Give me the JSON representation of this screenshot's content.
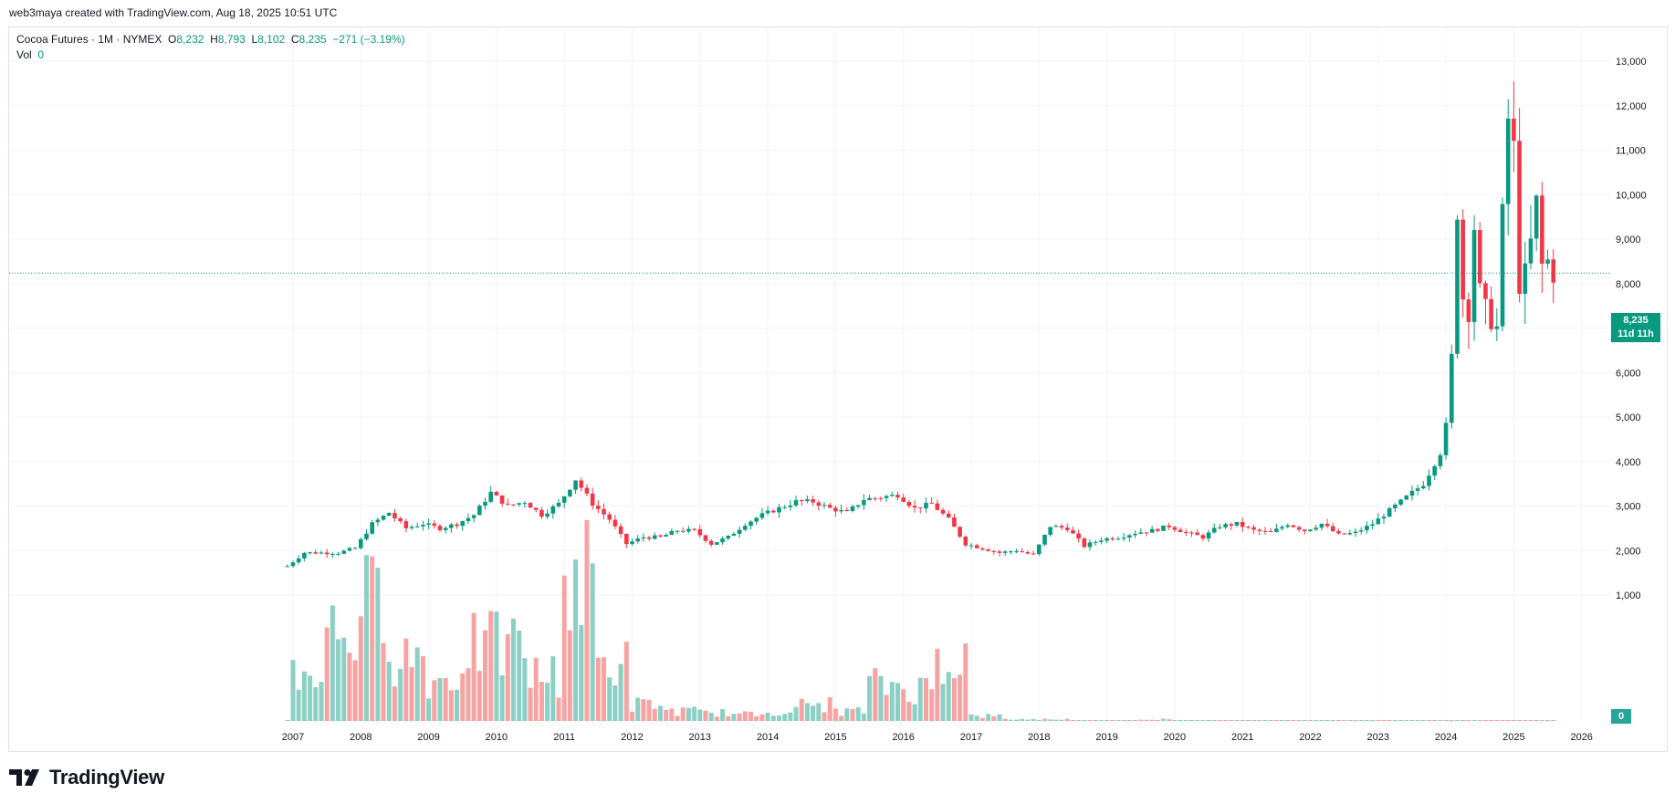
{
  "header": {
    "created_by": "web3maya created with TradingView.com, Aug 18, 2025 10:51 UTC"
  },
  "legend": {
    "symbol": "Cocoa Futures · 1M · NYMEX",
    "o_label": "O",
    "o_value": "8,232",
    "h_label": "H",
    "h_value": "8,793",
    "l_label": "L",
    "l_value": "8,102",
    "c_label": "C",
    "c_value": "8,235",
    "change": "−271 (−3.19%)",
    "vol_label": "Vol",
    "vol_value": "0"
  },
  "price_tag": {
    "price": "8,235",
    "countdown": "11d 11h"
  },
  "vol_tag": {
    "value": "0"
  },
  "brand": {
    "name": "TradingView"
  },
  "colors": {
    "up": "#089981",
    "down": "#f23645",
    "vol_up": "#8ccfc4",
    "vol_down": "#f5a3a3",
    "grid": "#f0f3fa"
  },
  "chart_data": {
    "type": "candlestick",
    "title": "Cocoa Futures · 1M · NYMEX",
    "interval": "monthly",
    "ylim": [
      0,
      13500
    ],
    "y_ticks": [
      "1,000",
      "2,000",
      "3,000",
      "4,000",
      "5,000",
      "6,000",
      "7,000",
      "8,000",
      "9,000",
      "10,000",
      "11,000",
      "12,000",
      "13,000"
    ],
    "x_ticks": [
      "2007",
      "2008",
      "2009",
      "2010",
      "2011",
      "2012",
      "2013",
      "2014",
      "2015",
      "2016",
      "2017",
      "2018",
      "2019",
      "2020",
      "2021",
      "2022",
      "2023",
      "2024",
      "2025",
      "2026"
    ],
    "grid": true,
    "last_price": 8235,
    "close_series": [
      {
        "date": "2006-12",
        "close": 1650
      },
      {
        "date": "2007-03",
        "close": 1950
      },
      {
        "date": "2007-06",
        "close": 1950
      },
      {
        "date": "2007-09",
        "close": 1950
      },
      {
        "date": "2007-12",
        "close": 2050
      },
      {
        "date": "2008-03",
        "close": 2600
      },
      {
        "date": "2008-06",
        "close": 2850
      },
      {
        "date": "2008-09",
        "close": 2500
      },
      {
        "date": "2008-12",
        "close": 2600
      },
      {
        "date": "2009-03",
        "close": 2500
      },
      {
        "date": "2009-06",
        "close": 2600
      },
      {
        "date": "2009-09",
        "close": 2800
      },
      {
        "date": "2009-12",
        "close": 3300
      },
      {
        "date": "2010-03",
        "close": 3000
      },
      {
        "date": "2010-06",
        "close": 3100
      },
      {
        "date": "2010-09",
        "close": 2800
      },
      {
        "date": "2010-12",
        "close": 3050
      },
      {
        "date": "2011-03",
        "close": 3600
      },
      {
        "date": "2011-06",
        "close": 3050
      },
      {
        "date": "2011-09",
        "close": 2700
      },
      {
        "date": "2011-12",
        "close": 2150
      },
      {
        "date": "2012-03",
        "close": 2300
      },
      {
        "date": "2012-06",
        "close": 2300
      },
      {
        "date": "2012-09",
        "close": 2450
      },
      {
        "date": "2012-12",
        "close": 2450
      },
      {
        "date": "2013-03",
        "close": 2150
      },
      {
        "date": "2013-06",
        "close": 2300
      },
      {
        "date": "2013-09",
        "close": 2600
      },
      {
        "date": "2013-12",
        "close": 2800
      },
      {
        "date": "2014-03",
        "close": 2950
      },
      {
        "date": "2014-06",
        "close": 3100
      },
      {
        "date": "2014-09",
        "close": 3100
      },
      {
        "date": "2014-12",
        "close": 2950
      },
      {
        "date": "2015-03",
        "close": 2850
      },
      {
        "date": "2015-06",
        "close": 3150
      },
      {
        "date": "2015-09",
        "close": 3200
      },
      {
        "date": "2015-12",
        "close": 3250
      },
      {
        "date": "2016-03",
        "close": 2950
      },
      {
        "date": "2016-06",
        "close": 3050
      },
      {
        "date": "2016-09",
        "close": 2700
      },
      {
        "date": "2016-12",
        "close": 2150
      },
      {
        "date": "2017-03",
        "close": 2050
      },
      {
        "date": "2017-06",
        "close": 1950
      },
      {
        "date": "2017-09",
        "close": 2000
      },
      {
        "date": "2017-12",
        "close": 1900
      },
      {
        "date": "2018-03",
        "close": 2550
      },
      {
        "date": "2018-06",
        "close": 2500
      },
      {
        "date": "2018-09",
        "close": 2100
      },
      {
        "date": "2018-12",
        "close": 2250
      },
      {
        "date": "2019-03",
        "close": 2300
      },
      {
        "date": "2019-06",
        "close": 2400
      },
      {
        "date": "2019-09",
        "close": 2450
      },
      {
        "date": "2019-12",
        "close": 2550
      },
      {
        "date": "2020-03",
        "close": 2400
      },
      {
        "date": "2020-06",
        "close": 2300
      },
      {
        "date": "2020-09",
        "close": 2550
      },
      {
        "date": "2020-12",
        "close": 2600
      },
      {
        "date": "2021-03",
        "close": 2450
      },
      {
        "date": "2021-06",
        "close": 2400
      },
      {
        "date": "2021-09",
        "close": 2600
      },
      {
        "date": "2021-12",
        "close": 2450
      },
      {
        "date": "2022-03",
        "close": 2600
      },
      {
        "date": "2022-06",
        "close": 2350
      },
      {
        "date": "2022-09",
        "close": 2400
      },
      {
        "date": "2022-12",
        "close": 2600
      },
      {
        "date": "2023-03",
        "close": 2900
      },
      {
        "date": "2023-06",
        "close": 3200
      },
      {
        "date": "2023-09",
        "close": 3500
      },
      {
        "date": "2023-12",
        "close": 4200
      },
      {
        "date": "2024-01",
        "close": 4800
      },
      {
        "date": "2024-02",
        "close": 6300
      },
      {
        "date": "2024-03",
        "close": 9700
      },
      {
        "date": "2024-04",
        "close": 7700
      },
      {
        "date": "2024-05",
        "close": 7400
      },
      {
        "date": "2024-06",
        "close": 9300
      },
      {
        "date": "2024-07",
        "close": 7800
      },
      {
        "date": "2024-08",
        "close": 7400
      },
      {
        "date": "2024-09",
        "close": 7200
      },
      {
        "date": "2024-10",
        "close": 7000
      },
      {
        "date": "2024-11",
        "close": 9500
      },
      {
        "date": "2024-12",
        "close": 11700
      },
      {
        "date": "2025-01",
        "close": 11000
      },
      {
        "date": "2025-02",
        "close": 8000
      },
      {
        "date": "2025-03",
        "close": 8200
      },
      {
        "date": "2025-04",
        "close": 8900
      },
      {
        "date": "2025-05",
        "close": 9800
      },
      {
        "date": "2025-06",
        "close": 8400
      },
      {
        "date": "2025-07",
        "close": 8500
      },
      {
        "date": "2025-08",
        "close": 8235
      }
    ],
    "volume_series": [
      {
        "period": "2007-H1",
        "volume": 30
      },
      {
        "period": "2007-H2",
        "volume": 55
      },
      {
        "period": "2008-H1",
        "volume": 70
      },
      {
        "period": "2008-H2",
        "volume": 40
      },
      {
        "period": "2009-H1",
        "volume": 25
      },
      {
        "period": "2009-H2",
        "volume": 45
      },
      {
        "period": "2010-H1",
        "volume": 45
      },
      {
        "period": "2010-H2",
        "volume": 28
      },
      {
        "period": "2011-H1",
        "volume": 85
      },
      {
        "period": "2011-H2",
        "volume": 35
      },
      {
        "period": "2012-H1",
        "volume": 10
      },
      {
        "period": "2012-H2",
        "volume": 6
      },
      {
        "period": "2013-H1",
        "volume": 5
      },
      {
        "period": "2013-H2",
        "volume": 4
      },
      {
        "period": "2014-H1",
        "volume": 6
      },
      {
        "period": "2014-H2",
        "volume": 10
      },
      {
        "period": "2015-H1",
        "volume": 6
      },
      {
        "period": "2015-H2",
        "volume": 22
      },
      {
        "period": "2016-H1",
        "volume": 20
      },
      {
        "period": "2016-H2",
        "volume": 40
      },
      {
        "period": "2017-H1",
        "volume": 3
      },
      {
        "period": "2017-H2",
        "volume": 1
      },
      {
        "period": "2018-H1",
        "volume": 1
      },
      {
        "period": "2018-H2",
        "volume": 0
      },
      {
        "period": "2019-H1",
        "volume": 0
      },
      {
        "period": "2019-H2",
        "volume": 1
      },
      {
        "period": "2020-2025",
        "volume": 0
      }
    ]
  }
}
